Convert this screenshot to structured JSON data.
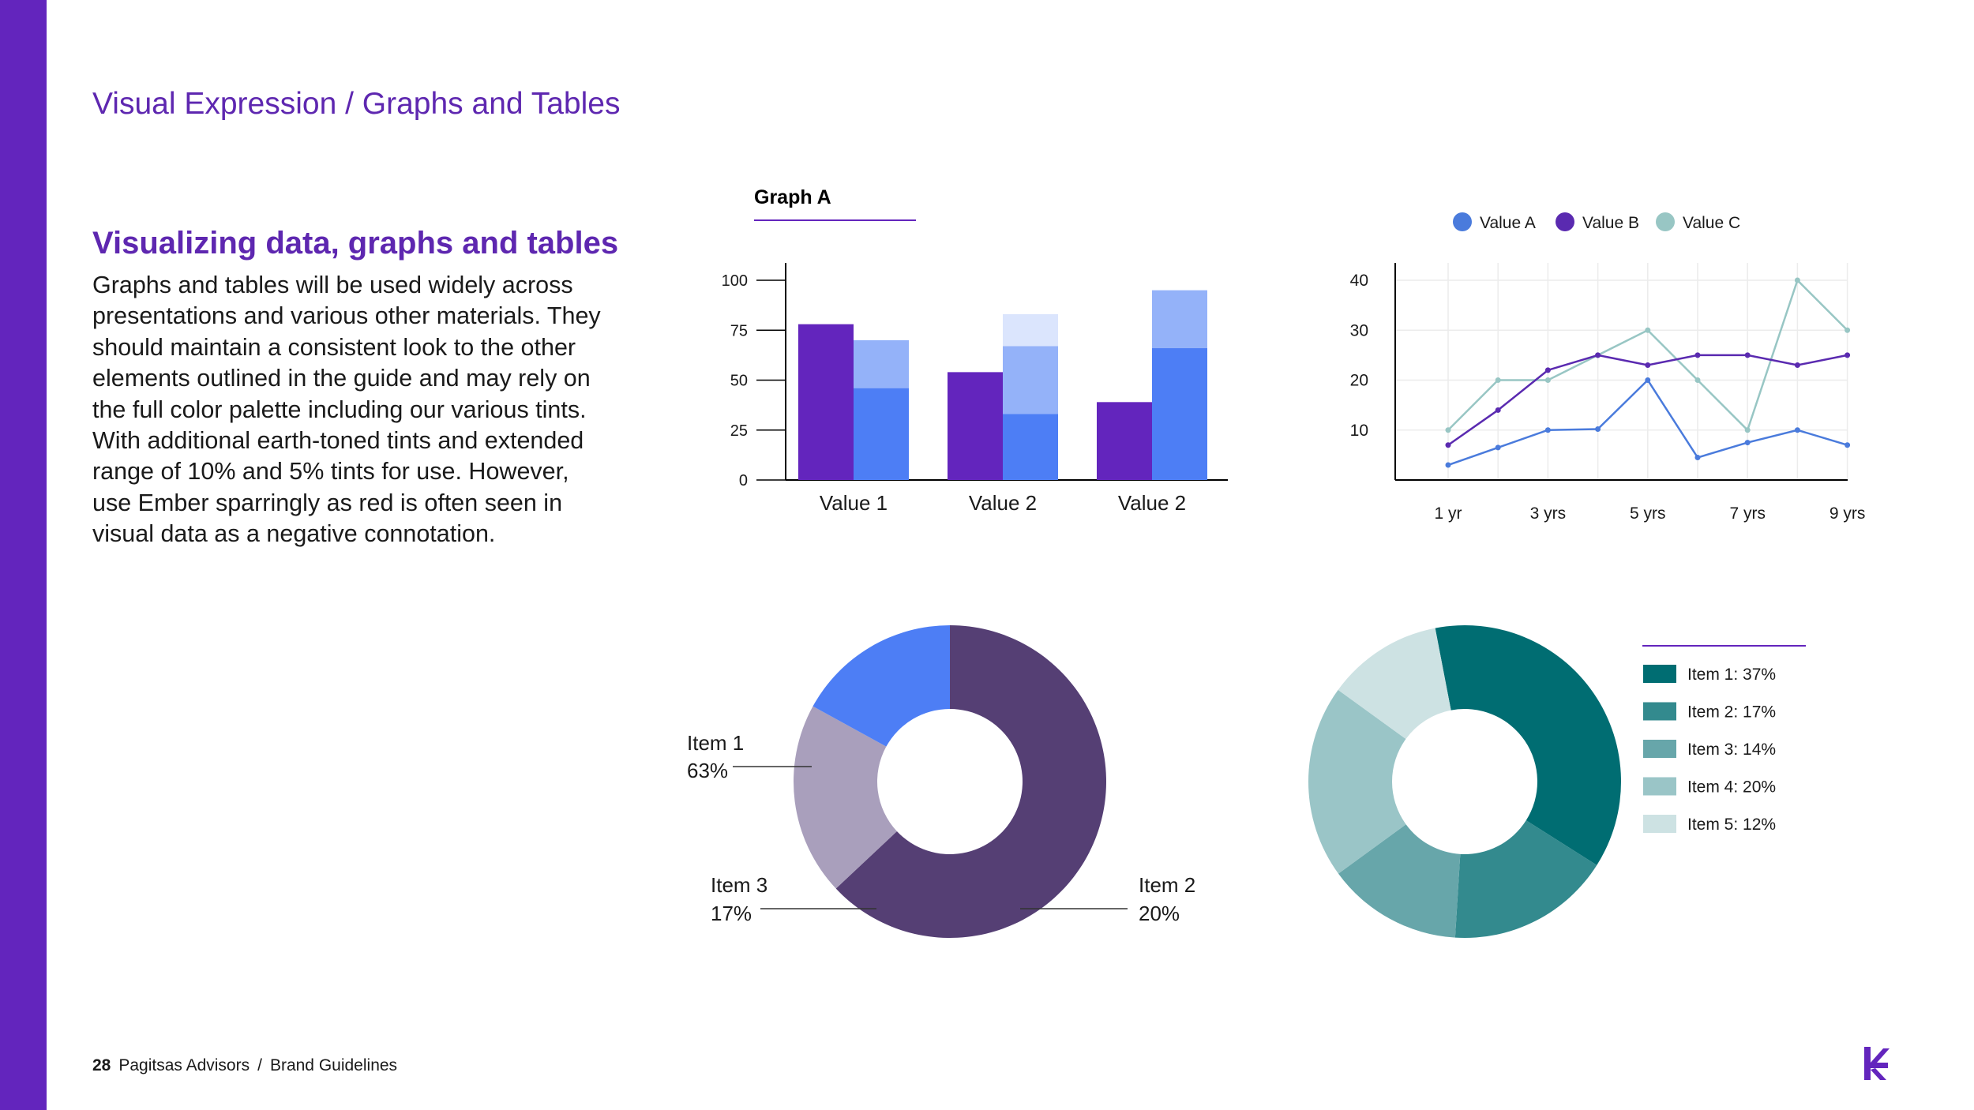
{
  "header": {
    "title": "Visual Expression / Graphs and Tables"
  },
  "content": {
    "heading": "Visualizing data, graphs and tables",
    "body_lines": [
      "Graphs and tables will be used widely across",
      "presentations and various other materials. They",
      "should maintain a consistent look to the other",
      "elements outlined in the guide and may rely on",
      "the full color palette including our various tints.",
      "With additional earth-toned tints and extended",
      "range of 10% and 5% tints for use. However,",
      "use Ember sparringly as red is often seen in",
      "visual data as a negative connotation."
    ]
  },
  "footer": {
    "page_number": "28",
    "company": "Pagitsas Advisors",
    "separator": "/",
    "doc": "Brand Guidelines"
  },
  "colors": {
    "sidebar": "#6325bd",
    "heading": "#5e27b0",
    "purple": "#6325bd",
    "blue": "#4d7ef5",
    "blue_light": "#94b2f9",
    "blue_pale": "#dbe5fd",
    "line_a": "#4a7bdc",
    "line_b": "#5a2ab0",
    "line_c": "#98c6c4"
  },
  "logo": {
    "icon": "brand-k-logo"
  },
  "chart_data": [
    {
      "type": "bar",
      "title": "Graph A",
      "categories": [
        "Value 1",
        "Value 2",
        "Value 2"
      ],
      "ylim": [
        0,
        100
      ],
      "yticks": [
        0,
        25,
        50,
        75,
        100
      ],
      "grid": false,
      "series": [
        {
          "values": [
            78,
            54,
            39
          ],
          "color": "#6325bd",
          "stack": "a"
        },
        {
          "values": [
            46,
            33,
            66
          ],
          "color": "#4d7ef5",
          "stack": "b"
        },
        {
          "values": [
            24,
            34,
            29
          ],
          "color": "#94b2f9",
          "stack": "b"
        },
        {
          "values": [
            0,
            16,
            0
          ],
          "color": "#dbe5fd",
          "stack": "b"
        }
      ]
    },
    {
      "type": "line",
      "x": [
        1,
        2,
        3,
        4,
        5,
        6,
        7,
        8,
        9
      ],
      "xtick_labels": [
        "1 yr",
        "3 yrs",
        "5 yrs",
        "7 yrs",
        "9 yrs"
      ],
      "xtick_positions": [
        1,
        3,
        5,
        7,
        9
      ],
      "ylim": [
        0,
        40
      ],
      "yticks": [
        10,
        20,
        30,
        40
      ],
      "grid": true,
      "legend": "top",
      "series": [
        {
          "name": "Value A",
          "color": "#4a7bdc",
          "values": [
            3,
            6.5,
            10,
            10.2,
            20,
            4.5,
            7.5,
            10,
            7
          ]
        },
        {
          "name": "Value B",
          "color": "#5a2ab0",
          "values": [
            7,
            14,
            22,
            25,
            23,
            25,
            25,
            23,
            25
          ]
        },
        {
          "name": "Value C",
          "color": "#98c6c4",
          "values": [
            10,
            20,
            20,
            25,
            30,
            20,
            10,
            40,
            30
          ]
        }
      ]
    },
    {
      "type": "pie",
      "donut": true,
      "slices": [
        {
          "label": "Item 1",
          "value": 63,
          "pct": "63%",
          "color": "#553f74"
        },
        {
          "label": "Item 2",
          "value": 20,
          "pct": "20%",
          "color": "#a99fbc"
        },
        {
          "label": "Item 3",
          "value": 17,
          "pct": "17%",
          "color": "#4d7ef5"
        }
      ]
    },
    {
      "type": "pie",
      "donut": true,
      "legend": "right",
      "slices": [
        {
          "label": "Item 1: 37%",
          "value": 37,
          "color": "#006d72"
        },
        {
          "label": "Item 2: 17%",
          "value": 17,
          "color": "#338a8e"
        },
        {
          "label": "Item 3: 14%",
          "value": 14,
          "color": "#67a6aa"
        },
        {
          "label": "Item 4: 20%",
          "value": 20,
          "color": "#9ac5c7"
        },
        {
          "label": "Item 5: 12%",
          "value": 12,
          "color": "#cde2e3"
        }
      ]
    }
  ]
}
